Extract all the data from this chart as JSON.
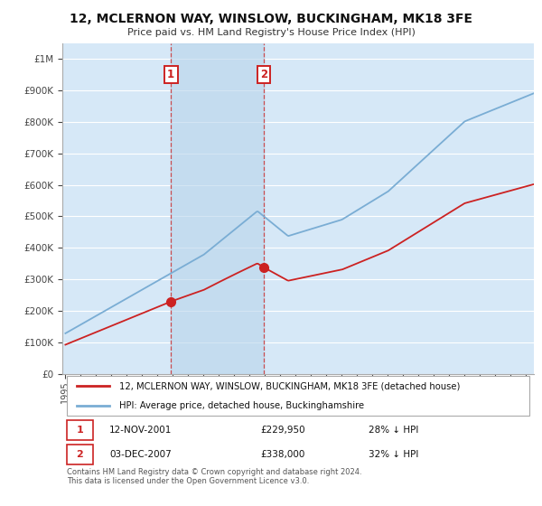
{
  "title": "12, MCLERNON WAY, WINSLOW, BUCKINGHAM, MK18 3FE",
  "subtitle": "Price paid vs. HM Land Registry's House Price Index (HPI)",
  "background_color": "#ffffff",
  "plot_bg_color": "#d6e8f7",
  "legend_label_red": "12, MCLERNON WAY, WINSLOW, BUCKINGHAM, MK18 3FE (detached house)",
  "legend_label_blue": "HPI: Average price, detached house, Buckinghamshire",
  "annotation1_label": "1",
  "annotation1_date": "12-NOV-2001",
  "annotation1_price": "£229,950",
  "annotation1_hpi": "28% ↓ HPI",
  "annotation2_label": "2",
  "annotation2_date": "03-DEC-2007",
  "annotation2_price": "£338,000",
  "annotation2_hpi": "32% ↓ HPI",
  "footnote": "Contains HM Land Registry data © Crown copyright and database right 2024.\nThis data is licensed under the Open Government Licence v3.0.",
  "purchase1_x": 2001.87,
  "purchase1_y": 229950,
  "purchase2_x": 2007.92,
  "purchase2_y": 338000,
  "ylim": [
    0,
    1050000
  ],
  "xlim_start": 1994.8,
  "xlim_end": 2025.5,
  "red_color": "#cc2222",
  "blue_color": "#7aadd4",
  "vline_color": "#cc3333",
  "grid_color": "#ffffff",
  "spine_color": "#aaaaaa"
}
